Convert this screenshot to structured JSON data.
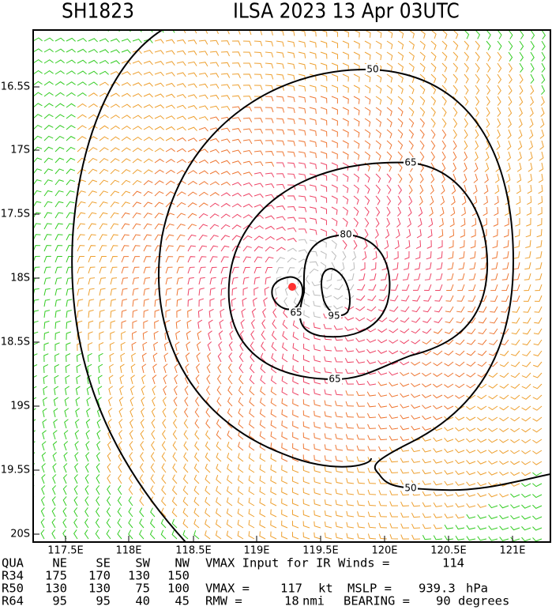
{
  "header": {
    "storm_id": "SH1823",
    "title": "ILSA 2023 13 Apr 03UTC"
  },
  "map": {
    "lat_ticks": [
      "16.5S",
      "17S",
      "17.5S",
      "18S",
      "18.5S",
      "19S",
      "19.5S",
      "20S"
    ],
    "lon_ticks": [
      "117.5E",
      "118E",
      "118.5E",
      "119E",
      "119.5E",
      "120E",
      "120.5E",
      "121E"
    ],
    "contour_labels": [
      "50",
      "65",
      "80",
      "65",
      "95",
      "65",
      "50"
    ]
  },
  "table": {
    "rows": [
      [
        "QUA",
        "NE",
        "SE",
        "SW",
        "NW",
        "VMAX Input for IR Winds =",
        "114"
      ],
      [
        "R34",
        "175",
        "170",
        "130",
        "150"
      ],
      [
        "R50",
        "130",
        "130",
        "75",
        "100",
        "VMAX =",
        "117",
        "kt",
        "MSLP =",
        "939.3",
        "hPa"
      ],
      [
        "R64",
        "95",
        "95",
        "40",
        "45",
        "RMW =",
        "18",
        "nmi",
        "BEARING =",
        "90",
        "degrees"
      ]
    ]
  }
}
